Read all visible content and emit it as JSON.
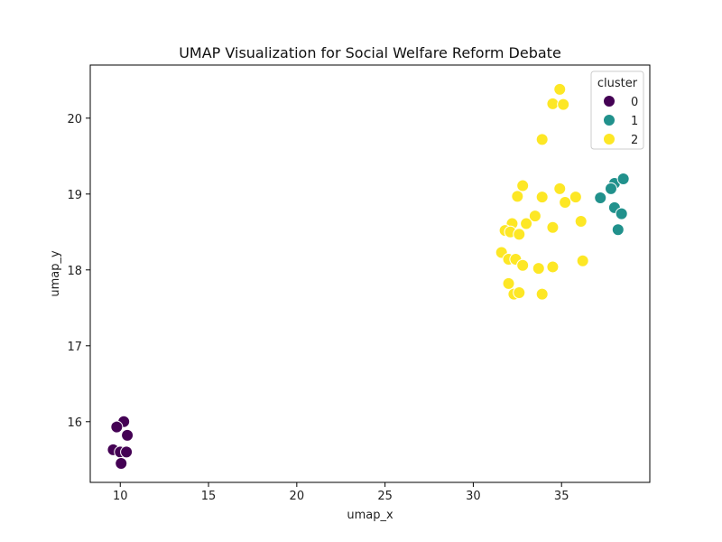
{
  "chart_data": {
    "type": "scatter",
    "title": "UMAP Visualization for Social Welfare Reform Debate",
    "xlabel": "umap_x",
    "ylabel": "umap_y",
    "xlim": [
      8.3,
      40.0
    ],
    "ylim": [
      15.2,
      20.7
    ],
    "xticks": [
      10,
      15,
      20,
      25,
      30,
      35
    ],
    "yticks": [
      16,
      17,
      18,
      19,
      20
    ],
    "grid": false,
    "legend": {
      "title": "cluster",
      "placement": "top-right"
    },
    "series": [
      {
        "name": "0",
        "color": "#440154",
        "points": [
          [
            10.2,
            16.0
          ],
          [
            9.8,
            15.93
          ],
          [
            10.4,
            15.82
          ],
          [
            9.6,
            15.63
          ],
          [
            10.0,
            15.6
          ],
          [
            10.35,
            15.6
          ],
          [
            10.05,
            15.45
          ]
        ]
      },
      {
        "name": "1",
        "color": "#21918c",
        "points": [
          [
            38.0,
            19.14
          ],
          [
            38.5,
            19.2
          ],
          [
            37.8,
            19.07
          ],
          [
            37.2,
            18.95
          ],
          [
            38.0,
            18.82
          ],
          [
            38.4,
            18.74
          ],
          [
            38.2,
            18.53
          ]
        ]
      },
      {
        "name": "2",
        "color": "#fde725",
        "points": [
          [
            34.9,
            20.38
          ],
          [
            34.5,
            20.19
          ],
          [
            35.1,
            20.18
          ],
          [
            33.9,
            19.72
          ],
          [
            32.8,
            19.11
          ],
          [
            34.9,
            19.07
          ],
          [
            32.5,
            18.97
          ],
          [
            33.9,
            18.96
          ],
          [
            35.8,
            18.96
          ],
          [
            35.2,
            18.89
          ],
          [
            33.5,
            18.71
          ],
          [
            36.1,
            18.64
          ],
          [
            32.2,
            18.61
          ],
          [
            33.0,
            18.61
          ],
          [
            34.5,
            18.56
          ],
          [
            31.8,
            18.52
          ],
          [
            32.1,
            18.5
          ],
          [
            32.6,
            18.47
          ],
          [
            31.6,
            18.23
          ],
          [
            32.0,
            18.14
          ],
          [
            32.4,
            18.14
          ],
          [
            36.2,
            18.12
          ],
          [
            32.8,
            18.06
          ],
          [
            34.5,
            18.04
          ],
          [
            33.7,
            18.02
          ],
          [
            32.0,
            17.82
          ],
          [
            32.3,
            17.68
          ],
          [
            32.6,
            17.7
          ],
          [
            33.9,
            17.68
          ]
        ]
      }
    ]
  }
}
